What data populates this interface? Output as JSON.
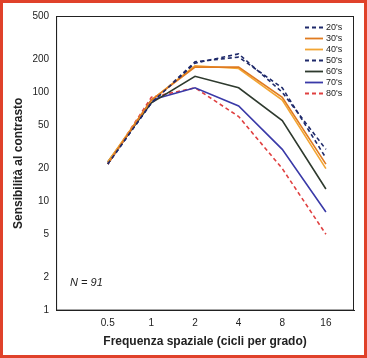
{
  "chart_data": {
    "type": "line",
    "x_label": "Frequenza spaziale (cicli per grado)",
    "y_label": "Sensibilità al contrasto",
    "annotation": "N = 91",
    "log": true,
    "grid": false,
    "legend": "top-right",
    "x": [
      0.5,
      1,
      2,
      4,
      8,
      16
    ],
    "xlim": [
      0.22,
      25
    ],
    "xticks": [
      0.5,
      1,
      2,
      4,
      8,
      16
    ],
    "ylim": [
      1,
      500
    ],
    "yticks": [
      1,
      2,
      5,
      10,
      20,
      50,
      100,
      200,
      500
    ],
    "series": [
      {
        "name": "20's",
        "color": "#1f2a6b",
        "line_style": "dashed",
        "values": [
          22,
          80,
          185,
          225,
          100,
          30
        ]
      },
      {
        "name": "30's",
        "color": "#e07b20",
        "line_style": "solid",
        "values": [
          22,
          85,
          170,
          170,
          90,
          22
        ]
      },
      {
        "name": "40's",
        "color": "#f2a533",
        "line_style": "solid",
        "values": [
          23,
          85,
          175,
          165,
          85,
          20
        ]
      },
      {
        "name": "50's",
        "color": "#1f2a6b",
        "line_style": "dashed",
        "values": [
          22,
          80,
          190,
          210,
          110,
          25
        ]
      },
      {
        "name": "60's",
        "color": "#2e3a2e",
        "line_style": "solid",
        "values": [
          23,
          80,
          140,
          110,
          55,
          13
        ]
      },
      {
        "name": "70's",
        "color": "#3a3aa8",
        "line_style": "solid",
        "values": [
          22,
          85,
          110,
          75,
          30,
          8
        ]
      },
      {
        "name": "80's",
        "color": "#e04040",
        "line_style": "dashed",
        "values": [
          22,
          90,
          110,
          60,
          20,
          5
        ]
      }
    ]
  }
}
